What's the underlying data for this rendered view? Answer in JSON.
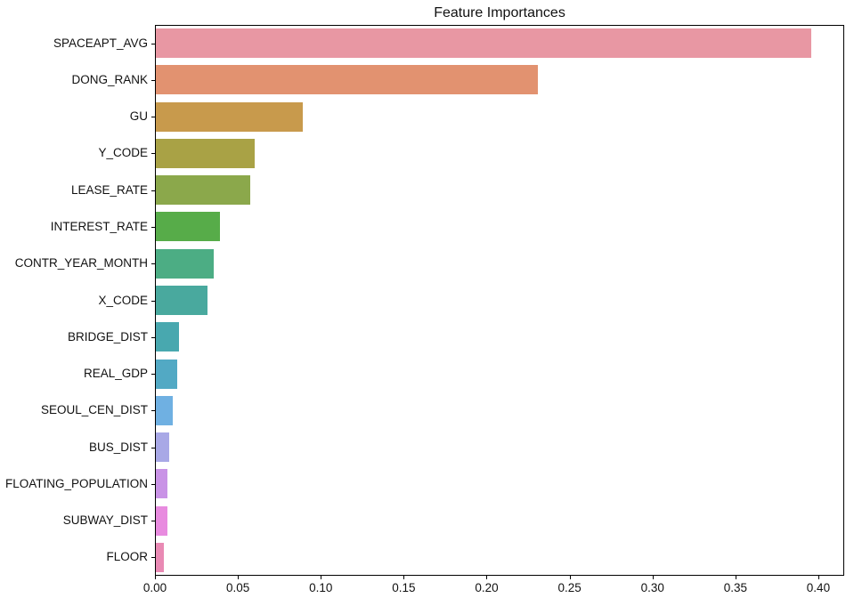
{
  "chart_data": {
    "type": "bar",
    "orientation": "horizontal",
    "title": "Feature Importances",
    "xlabel": "",
    "ylabel": "",
    "grid": false,
    "legend": null,
    "xlim": [
      0,
      0.4156
    ],
    "x_ticks": [
      0.0,
      0.05,
      0.1,
      0.15,
      0.2,
      0.25,
      0.3,
      0.35,
      0.4
    ],
    "x_tick_labels": [
      "0.00",
      "0.05",
      "0.10",
      "0.15",
      "0.20",
      "0.25",
      "0.30",
      "0.35",
      "0.40"
    ],
    "categories": [
      "SPACEAPT_AVG",
      "DONG_RANK",
      "GU",
      "Y_CODE",
      "LEASE_RATE",
      "INTEREST_RATE",
      "CONTR_YEAR_MONTH",
      "X_CODE",
      "BRIDGE_DIST",
      "REAL_GDP",
      "SEOUL_CEN_DIST",
      "BUS_DIST",
      "FLOATING_POPULATION",
      "SUBWAY_DIST",
      "FLOOR"
    ],
    "values": [
      0.396,
      0.231,
      0.089,
      0.06,
      0.057,
      0.039,
      0.035,
      0.031,
      0.014,
      0.013,
      0.01,
      0.008,
      0.007,
      0.007,
      0.005
    ],
    "bar_colors": [
      "#e897a3",
      "#e29270",
      "#c89a4c",
      "#a9a245",
      "#8ba84b",
      "#57ac49",
      "#4cad84",
      "#49a99e",
      "#48a8af",
      "#52a9c4",
      "#6fb0e2",
      "#a8a8e6",
      "#c993e6",
      "#e88bdf",
      "#e98ab4"
    ],
    "axis_color": "#000000",
    "background_color": "#ffffff"
  }
}
